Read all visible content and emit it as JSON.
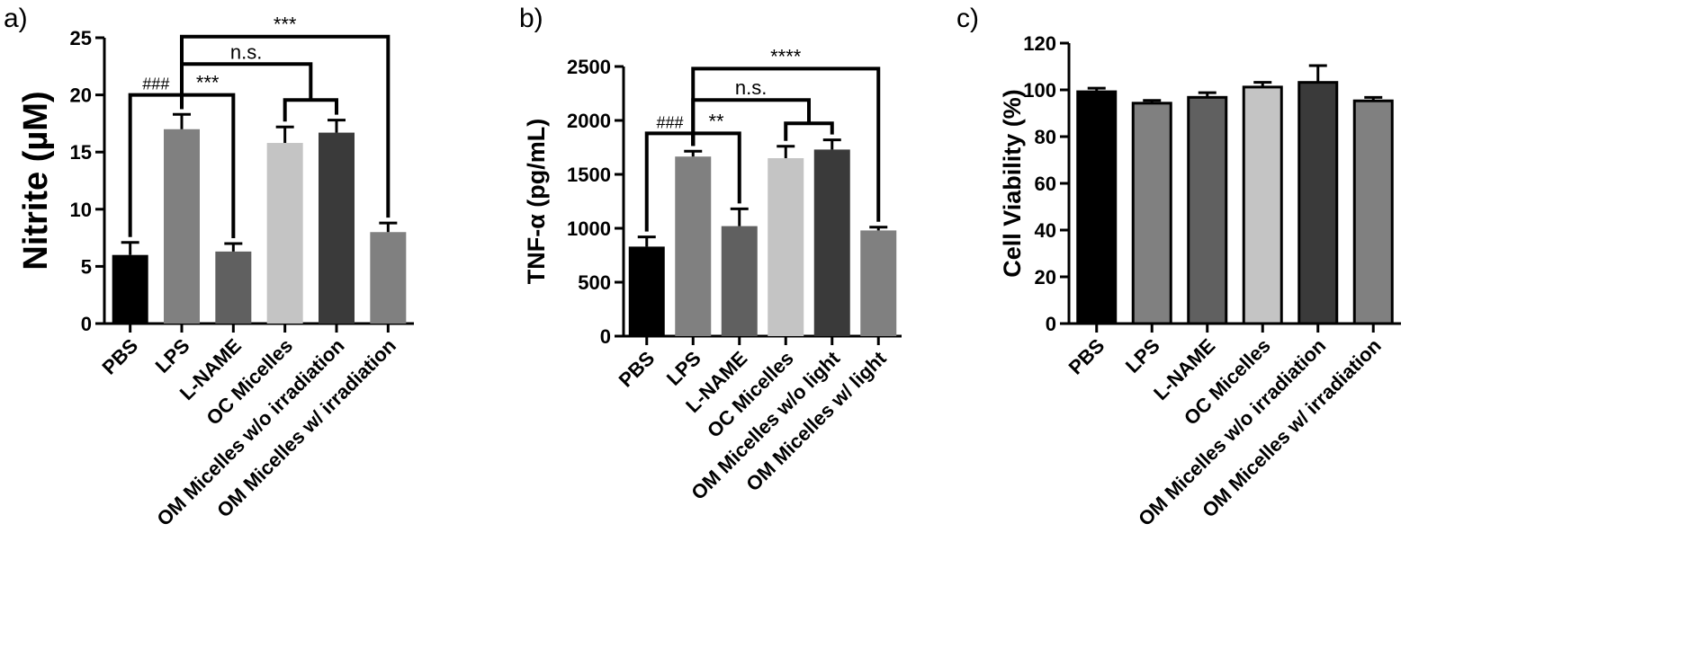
{
  "chart_data": [
    {
      "panel": "a)",
      "type": "bar",
      "ylabel": "Nitrite (µM)",
      "ylim": [
        0,
        25
      ],
      "yticks": [
        0,
        5,
        10,
        15,
        20,
        25
      ],
      "categories": [
        "PBS",
        "LPS",
        "L-NAME",
        "OC Micelles",
        "OM Micelles w/o irradiation",
        "OM Micelles  w/ irradiation"
      ],
      "values": [
        6.0,
        17.0,
        6.3,
        15.8,
        16.7,
        8.0
      ],
      "errors": [
        1.1,
        1.3,
        0.7,
        1.4,
        1.1,
        0.8
      ],
      "colors": [
        "#000000",
        "#808080",
        "#606060",
        "#c4c4c4",
        "#3a3a3a",
        "#808080"
      ],
      "annotations": [
        {
          "label": "###",
          "from": 0,
          "to": 1,
          "level": 20.0
        },
        {
          "label": "***",
          "from": 1,
          "to": 2,
          "level": 20.0
        },
        {
          "label": "n.s.",
          "from": 1,
          "to_group": [
            3,
            4
          ],
          "level": 22.7
        },
        {
          "label": "***",
          "from": 1,
          "to": 5,
          "level": 25.1
        }
      ]
    },
    {
      "panel": "b)",
      "type": "bar",
      "ylabel": "TNF-α (pg/mL)",
      "ylim": [
        0,
        2500
      ],
      "yticks": [
        0,
        500,
        1000,
        1500,
        2000,
        2500
      ],
      "categories": [
        "PBS",
        "LPS",
        "L-NAME",
        "OC Micelles",
        "OM Micelles w/o light",
        "OM Micelles w/ light"
      ],
      "values": [
        830,
        1665,
        1020,
        1650,
        1730,
        980
      ],
      "errors": [
        90,
        50,
        160,
        110,
        90,
        30
      ],
      "colors": [
        "#000000",
        "#808080",
        "#606060",
        "#c4c4c4",
        "#3a3a3a",
        "#808080"
      ],
      "annotations": [
        {
          "label": "###",
          "from": 0,
          "to": 1,
          "level": 1880
        },
        {
          "label": "**",
          "from": 1,
          "to": 2,
          "level": 1880
        },
        {
          "label": "n.s.",
          "from": 1,
          "to_group": [
            3,
            4
          ],
          "level": 2190
        },
        {
          "label": "****",
          "from": 1,
          "to": 5,
          "level": 2480
        }
      ]
    },
    {
      "panel": "c)",
      "type": "bar",
      "ylabel": "Cell Viability (%)",
      "ylim": [
        0,
        120
      ],
      "yticks": [
        0,
        20,
        40,
        60,
        80,
        100,
        120
      ],
      "categories": [
        "PBS",
        "LPS",
        "L-NAME",
        "OC Micelles",
        "OM Micelles w/o irradiation",
        "OM Micelles w/ irradiation"
      ],
      "values": [
        99.2,
        94.3,
        96.8,
        101.2,
        103.2,
        95.3
      ],
      "errors": [
        1.5,
        1.2,
        2.0,
        2.0,
        7.2,
        1.5
      ],
      "colors": [
        "#000000",
        "#808080",
        "#606060",
        "#c4c4c4",
        "#3a3a3a",
        "#808080"
      ],
      "annotations": []
    }
  ]
}
